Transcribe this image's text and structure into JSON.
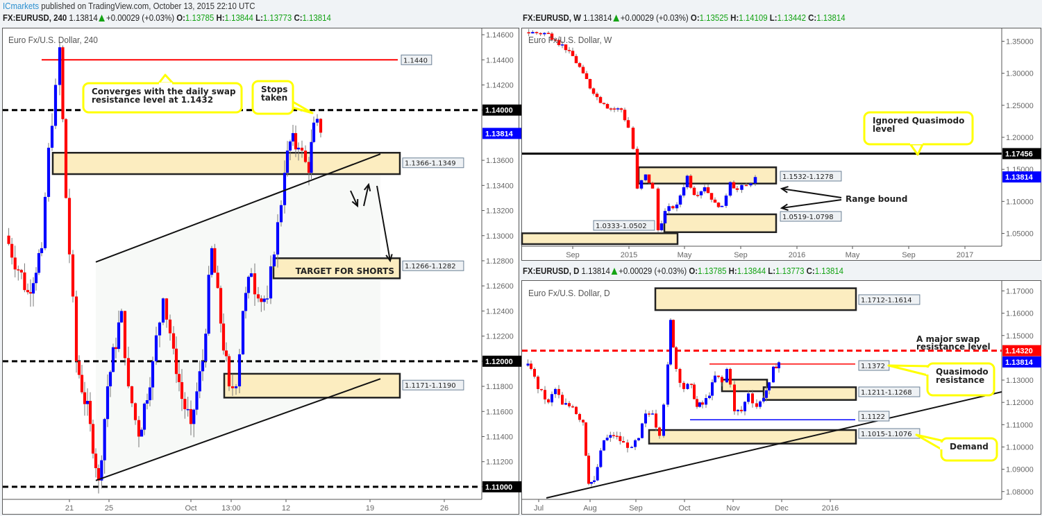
{
  "publisher": {
    "brand": "ICmarkets",
    "text": " published on TradingView.com, October 13, 2015 22:10 UTC"
  },
  "colors": {
    "up": "#0000ff",
    "down": "#ff0000",
    "wick": "#777777",
    "zone_fill": "#fcedc0",
    "zone_border": "#222222",
    "callout_border": "#ffff00",
    "price_tag": "#0000ff",
    "green": "#14a314"
  },
  "panels": [
    {
      "id": "h4",
      "header": {
        "symbol": "FX:EURUSD, 240",
        "price": "1.13814",
        "change": "+0.00029 (+0.03%)",
        "o_label": "O:",
        "o": "1.13785",
        "h_label": "H:",
        "h": "1.13844",
        "l_label": "L:",
        "l": "1.13773",
        "c_label": "C:",
        "c": "1.13814"
      },
      "title": "Euro Fx/U.S. Dollar, 240",
      "y_ticks": [
        "1.14600",
        "1.14400",
        "1.14200",
        "1.14000",
        "1.13600",
        "1.13400",
        "1.13200",
        "1.13000",
        "1.12800",
        "1.12600",
        "1.12400",
        "1.12200",
        "1.12000",
        "1.11800",
        "1.11600",
        "1.11400",
        "1.11200",
        "1.11000"
      ],
      "x_ticks": [
        "21",
        "25",
        "Oct",
        "13:00",
        "12",
        "19",
        "26"
      ],
      "price_tags": [
        {
          "label": "1.14000",
          "color": "#000000"
        },
        {
          "label": "1.13814",
          "color": "#0000ff"
        },
        {
          "label": "1.12000",
          "color": "#000000"
        },
        {
          "label": "1.11000",
          "color": "#000000"
        }
      ],
      "zone_labels": [
        "1.1440",
        "1.1366-1.1349",
        "1.1266-1.1282",
        "1.1171-1.1190"
      ],
      "callouts": [
        "Converges with the daily swap resistance level at 1.1432",
        "Stops taken"
      ],
      "annotations": [
        "TARGET FOR SHORTS"
      ]
    },
    {
      "id": "weekly",
      "header": {
        "symbol": "FX:EURUSD, W",
        "price": "1.13814",
        "change": "+0.00029 (+0.03%)",
        "o_label": "O:",
        "o": "1.13525",
        "h_label": "H:",
        "h": "1.14109",
        "l_label": "L:",
        "l": "1.13442",
        "c_label": "C:",
        "c": "1.13814"
      },
      "title": "Euro Fx/U.S. Dollar, W",
      "y_ticks": [
        "1.35000",
        "1.30000",
        "1.25000",
        "1.20000",
        "1.15000",
        "1.10000",
        "1.05000"
      ],
      "x_ticks": [
        "Sep",
        "2015",
        "May",
        "Sep",
        "2016",
        "May",
        "Sep",
        "2017"
      ],
      "price_tags": [
        {
          "label": "1.17456",
          "color": "#000000"
        },
        {
          "label": "1.13814",
          "color": "#0000ff"
        }
      ],
      "zone_labels": [
        "1.1532-1.1278",
        "1.0519-1.0798",
        "1.0333-1.0502"
      ],
      "callouts": [
        "Ignored Quasimodo level"
      ],
      "annotations": [
        "Range bound"
      ]
    },
    {
      "id": "daily",
      "header": {
        "symbol": "FX:EURUSD, D",
        "price": "1.13814",
        "change": "+0.00029 (+0.03%)",
        "o_label": "O:",
        "o": "1.13785",
        "h_label": "H:",
        "h": "1.13844",
        "l_label": "L:",
        "l": "1.13773",
        "c_label": "C:",
        "c": "1.13814"
      },
      "title": "Euro Fx/U.S. Dollar, D",
      "y_ticks": [
        "1.17000",
        "1.16000",
        "1.15000",
        "1.13000",
        "1.12000",
        "1.11000",
        "1.10000",
        "1.09000",
        "1.08000"
      ],
      "x_ticks": [
        "Jul",
        "Aug",
        "Sep",
        "Oct",
        "Nov",
        "Dec",
        "2016"
      ],
      "price_tags": [
        {
          "label": "1.14320",
          "color": "#ff0000"
        },
        {
          "label": "1.13814",
          "color": "#0000ff"
        }
      ],
      "zone_labels": [
        "1.1712-1.1614",
        "1.1372",
        "1.1211-1.1268",
        "1.1122",
        "1.1015-1.1076"
      ],
      "callouts": [
        "Quasimodo resistance",
        "Demand"
      ],
      "annotations": [
        "A major swap resistance level"
      ]
    }
  ],
  "chart_data": [
    {
      "type": "candlestick",
      "title": "Euro Fx/U.S. Dollar, 240",
      "symbol": "FX:EURUSD",
      "timeframe": "240",
      "ylim": [
        1.109,
        1.1465
      ],
      "x_ticks": [
        "21",
        "25",
        "Oct",
        "13:00",
        "12",
        "19",
        "26"
      ],
      "levels": [
        {
          "name": "resistance",
          "value": 1.144,
          "style": "solid",
          "color": "#ff0000"
        },
        {
          "name": "psych-1.14",
          "value": 1.14,
          "style": "dashed",
          "color": "#000000"
        },
        {
          "name": "psych-1.12",
          "value": 1.12,
          "style": "dashed",
          "color": "#000000"
        },
        {
          "name": "psych-1.11",
          "value": 1.11,
          "style": "dashed",
          "color": "#000000"
        }
      ],
      "zones": [
        {
          "label": "1.1366-1.1349",
          "top": 1.1366,
          "bottom": 1.1349
        },
        {
          "label": "1.1266-1.1282",
          "top": 1.1282,
          "bottom": 1.1266,
          "text": "TARGET FOR SHORTS"
        },
        {
          "label": "1.1171-1.1190",
          "top": 1.119,
          "bottom": 1.1171
        }
      ],
      "last_price": 1.13814
    },
    {
      "type": "candlestick",
      "title": "Euro Fx/U.S. Dollar, W",
      "symbol": "FX:EURUSD",
      "timeframe": "W",
      "ylim": [
        1.03,
        1.37
      ],
      "x_ticks": [
        "Sep",
        "2015",
        "May",
        "Sep",
        "2016",
        "May",
        "Sep",
        "2017"
      ],
      "levels": [
        {
          "name": "ignored-quasimodo",
          "value": 1.17456,
          "style": "solid",
          "color": "#000000"
        }
      ],
      "zones": [
        {
          "label": "1.1532-1.1278",
          "top": 1.1532,
          "bottom": 1.1278
        },
        {
          "label": "1.0519-1.0798",
          "top": 1.0798,
          "bottom": 1.0519
        },
        {
          "label": "1.0333-1.0502",
          "top": 1.0502,
          "bottom": 1.0333
        }
      ],
      "last_price": 1.13814
    },
    {
      "type": "candlestick",
      "title": "Euro Fx/U.S. Dollar, D",
      "symbol": "FX:EURUSD",
      "timeframe": "D",
      "ylim": [
        1.077,
        1.174
      ],
      "x_ticks": [
        "Jul",
        "Aug",
        "Sep",
        "Oct",
        "Nov",
        "Dec",
        "2016"
      ],
      "levels": [
        {
          "name": "swap-resistance",
          "value": 1.1432,
          "style": "dashed",
          "color": "#ff0000"
        },
        {
          "name": "quasimodo-resistance",
          "value": 1.1372,
          "style": "solid",
          "color": "#ff0000"
        },
        {
          "name": "support",
          "value": 1.1122,
          "style": "solid",
          "color": "#0000ff"
        }
      ],
      "zones": [
        {
          "label": "1.1712-1.1614",
          "top": 1.1712,
          "bottom": 1.1614
        },
        {
          "label": "1.1211-1.1268",
          "top": 1.1268,
          "bottom": 1.1211
        },
        {
          "label": "1.1015-1.1076",
          "top": 1.1076,
          "bottom": 1.1015
        }
      ],
      "last_price": 1.13814
    }
  ]
}
